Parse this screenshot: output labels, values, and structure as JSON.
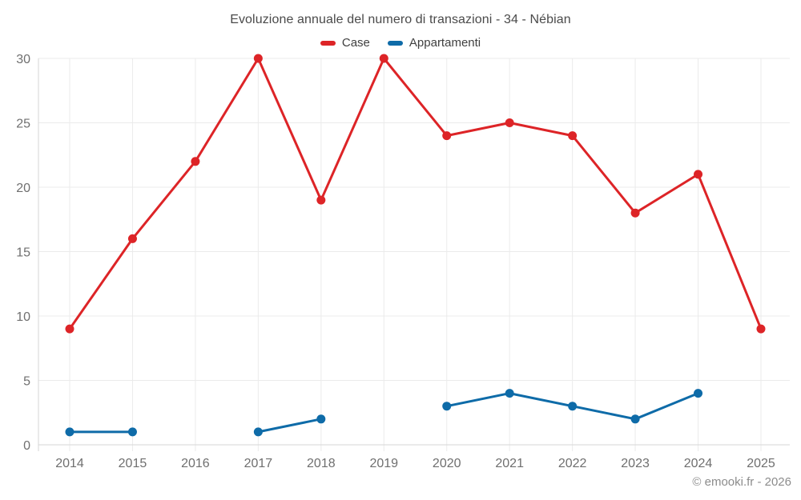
{
  "header": {
    "title": "Evoluzione annuale del numero di transazioni - 34 - Nébian"
  },
  "legend": {
    "items": [
      {
        "label": "Case",
        "color": "#dd2427"
      },
      {
        "label": "Appartamenti",
        "color": "#0e6ba8"
      }
    ]
  },
  "footer": {
    "copyright": "© emooki.fr - 2026"
  },
  "colors": {
    "grid": "#ebebeb",
    "axis": "#d6d6d6",
    "tick_label": "#6f6f6f",
    "title": "#4a4a4a",
    "footer": "#8c8c8c",
    "case_series": "#dd2427",
    "appartamenti_series": "#0e6ba8",
    "background": "#ffffff"
  },
  "chart_data": {
    "type": "line",
    "title": "Evoluzione annuale del numero di transazioni - 34 - Nébian",
    "xlabel": "",
    "ylabel": "",
    "categories": [
      "2014",
      "2015",
      "2016",
      "2017",
      "2018",
      "2019",
      "2020",
      "2021",
      "2022",
      "2023",
      "2024",
      "2025"
    ],
    "series": [
      {
        "name": "Case",
        "color": "#dd2427",
        "values": [
          9,
          16,
          22,
          30,
          19,
          30,
          24,
          25,
          24,
          18,
          21,
          9
        ]
      },
      {
        "name": "Appartamenti",
        "color": "#0e6ba8",
        "values": [
          1,
          1,
          null,
          1,
          2,
          null,
          3,
          4,
          3,
          2,
          4,
          null
        ]
      }
    ],
    "ylim": [
      0,
      30
    ],
    "yticks": [
      0,
      5,
      10,
      15,
      20,
      25,
      30
    ],
    "grid": true,
    "legend_position": "top"
  }
}
